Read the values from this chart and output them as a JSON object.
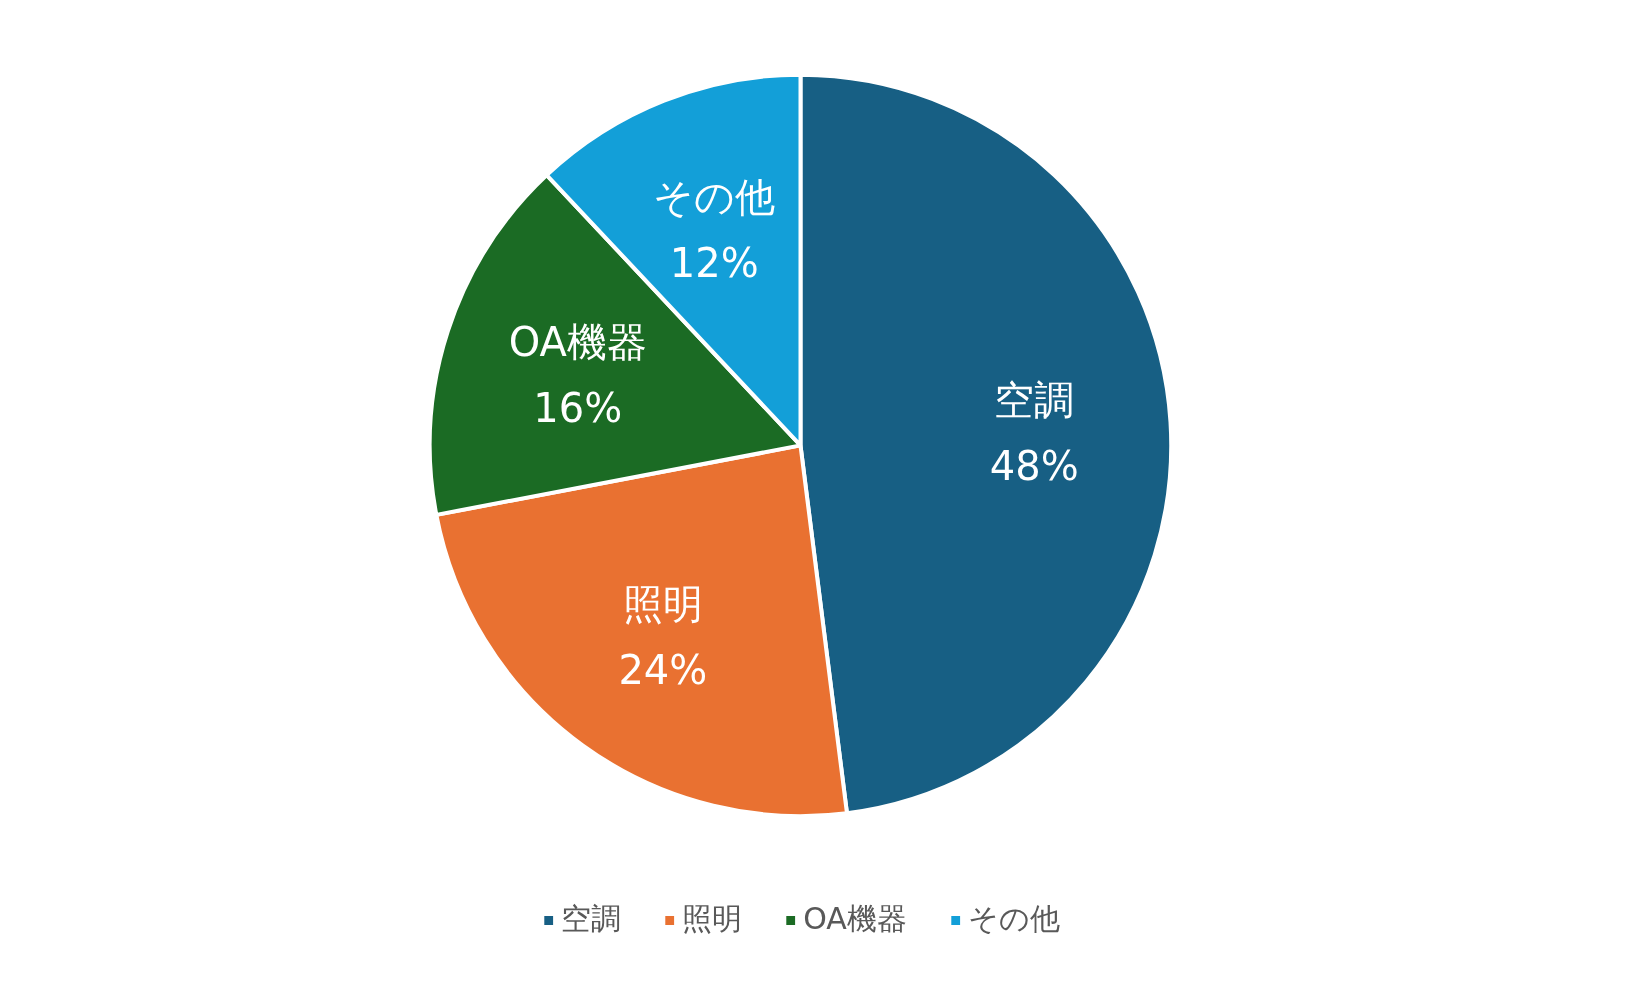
{
  "chart_data": {
    "type": "pie",
    "categories": [
      "空調",
      "照明",
      "OA機器",
      "その他"
    ],
    "values": [
      48,
      24,
      16,
      12
    ],
    "colors": [
      "#175f84",
      "#e97131",
      "#1b6b24",
      "#139fd8"
    ],
    "value_labels": [
      "48%",
      "24%",
      "16%",
      "12%"
    ],
    "legend": "bottom"
  }
}
